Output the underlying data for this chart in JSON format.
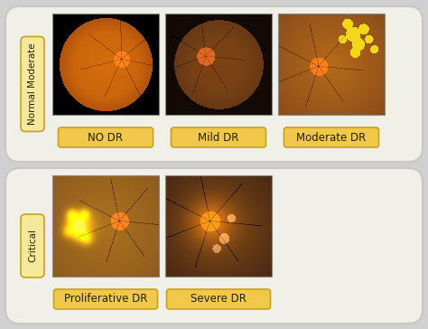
{
  "bg_color": "#d0d0d0",
  "panel_color": "#f0efe8",
  "panel_border": "#c8c8c0",
  "label_bg": "#f2c84b",
  "label_border": "#c8a020",
  "side_bg_top": "#f5e89a",
  "side_bg_bot": "#f5e89a",
  "side_border": "#c8a020",
  "top_labels": [
    "NO DR",
    "Mild DR",
    "Moderate DR"
  ],
  "bottom_labels": [
    "Proliferative DR",
    "Severe DR"
  ],
  "side_top": "Normal Moderate",
  "side_bot": "Critical"
}
